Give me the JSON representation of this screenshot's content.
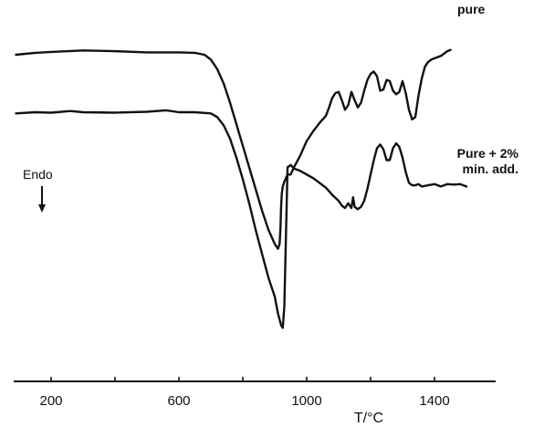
{
  "chart_data": {
    "type": "line",
    "title": "",
    "xlabel": "T/°C",
    "ylabel": "",
    "x_ticks": [
      200,
      600,
      1000,
      1400
    ],
    "x_minor_ticks": [
      400,
      800,
      1200
    ],
    "xlim": [
      90,
      1505
    ],
    "ylim": [
      -12,
      1.2
    ],
    "y_axis_shown": false,
    "grid": false,
    "annotation": {
      "text": "Endo",
      "arrow": "down"
    },
    "series": [
      {
        "name": "pure",
        "label": "pure",
        "color": "#111111",
        "x": [
          90,
          150,
          200,
          300,
          400,
          500,
          600,
          650,
          680,
          700,
          720,
          740,
          760,
          780,
          800,
          820,
          840,
          860,
          880,
          900,
          910,
          915,
          918,
          920,
          922,
          925,
          930,
          940,
          950,
          960,
          980,
          1000,
          1020,
          1040,
          1060,
          1070,
          1080,
          1090,
          1100,
          1110,
          1120,
          1130,
          1140,
          1150,
          1160,
          1170,
          1180,
          1190,
          1200,
          1210,
          1220,
          1230,
          1240,
          1250,
          1260,
          1270,
          1280,
          1290,
          1300,
          1310,
          1320,
          1330,
          1340,
          1350,
          1360,
          1370,
          1380,
          1390,
          1400,
          1420,
          1440,
          1450
        ],
        "y": [
          0,
          0.08,
          0.12,
          0.18,
          0.15,
          0.1,
          0.1,
          0.08,
          0.0,
          -0.2,
          -0.6,
          -1.2,
          -2.0,
          -2.9,
          -3.8,
          -4.7,
          -5.6,
          -6.5,
          -7.3,
          -7.9,
          -8.1,
          -7.9,
          -7.2,
          -6.3,
          -5.8,
          -5.5,
          -5.3,
          -5.0,
          -5.0,
          -4.7,
          -4.2,
          -3.6,
          -3.2,
          -2.85,
          -2.55,
          -2.2,
          -1.8,
          -1.6,
          -1.55,
          -1.9,
          -2.3,
          -2.1,
          -1.55,
          -1.9,
          -2.2,
          -2.0,
          -1.5,
          -1.05,
          -0.8,
          -0.7,
          -0.9,
          -1.5,
          -1.45,
          -1.05,
          -1.1,
          -1.5,
          -1.65,
          -1.55,
          -1.1,
          -1.6,
          -2.3,
          -2.7,
          -2.6,
          -1.7,
          -1.0,
          -0.5,
          -0.3,
          -0.2,
          -0.15,
          -0.05,
          0.15,
          0.2
        ]
      },
      {
        "name": "Pure + 2% min. add.",
        "label": "Pure + 2%\nmin. add.",
        "color": "#111111",
        "x": [
          90,
          150,
          200,
          260,
          300,
          400,
          500,
          560,
          600,
          650,
          700,
          720,
          740,
          760,
          780,
          800,
          820,
          840,
          860,
          880,
          900,
          910,
          920,
          925,
          930,
          935,
          940,
          950,
          960,
          980,
          1000,
          1020,
          1040,
          1060,
          1080,
          1100,
          1110,
          1120,
          1130,
          1140,
          1145,
          1150,
          1155,
          1160,
          1170,
          1180,
          1190,
          1200,
          1210,
          1220,
          1230,
          1240,
          1250,
          1260,
          1270,
          1280,
          1290,
          1300,
          1310,
          1320,
          1330,
          1340,
          1350,
          1360,
          1380,
          1400,
          1420,
          1440,
          1460,
          1480,
          1500
        ],
        "y": [
          -2.45,
          -2.4,
          -2.42,
          -2.35,
          -2.4,
          -2.42,
          -2.38,
          -2.32,
          -2.4,
          -2.4,
          -2.45,
          -2.6,
          -2.95,
          -3.5,
          -4.3,
          -5.2,
          -6.2,
          -7.3,
          -8.3,
          -9.3,
          -10.1,
          -10.8,
          -11.3,
          -11.4,
          -10.5,
          -7.5,
          -4.7,
          -4.6,
          -4.75,
          -4.85,
          -5.0,
          -5.15,
          -5.35,
          -5.55,
          -5.85,
          -6.1,
          -6.3,
          -6.4,
          -6.2,
          -6.4,
          -5.95,
          -6.35,
          -6.4,
          -6.45,
          -6.35,
          -6.1,
          -5.6,
          -5.0,
          -4.4,
          -3.9,
          -3.75,
          -3.95,
          -4.4,
          -4.4,
          -3.9,
          -3.7,
          -3.85,
          -4.3,
          -4.9,
          -5.35,
          -5.45,
          -5.45,
          -5.4,
          -5.5,
          -5.45,
          -5.4,
          -5.5,
          -5.4,
          -5.42,
          -5.4,
          -5.5
        ]
      }
    ]
  }
}
